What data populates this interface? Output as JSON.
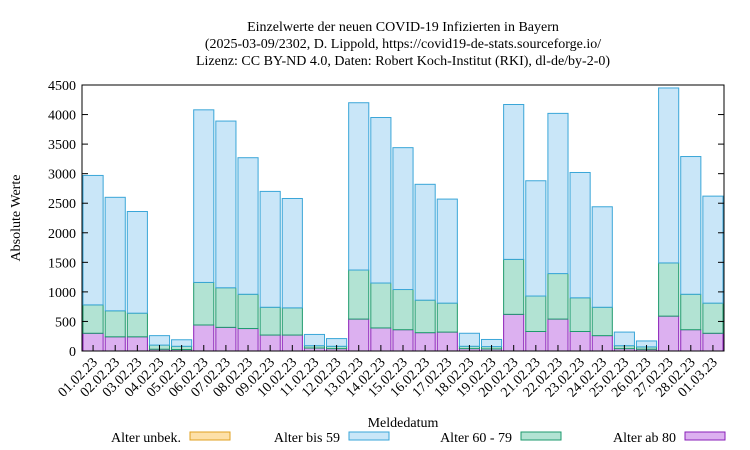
{
  "chart_data": {
    "type": "bar",
    "stacked": true,
    "title": [
      "Einzelwerte der neuen COVID-19 Infizierten in Bayern",
      "(2025-03-09/2302, D. Lippold, https://covid19-de-stats.sourceforge.io/",
      "Lizenz: CC BY-ND 4.0, Daten: Robert Koch-Institut (RKI), dl-de/by-2-0)"
    ],
    "xlabel": "Meldedatum",
    "ylabel": "Absolute Werte",
    "ylim": [
      0,
      4500
    ],
    "yticks": [
      "0",
      "500",
      "1000",
      "1500",
      "2000",
      "2500",
      "3000",
      "3500",
      "4000",
      "4500"
    ],
    "categories": [
      "01.02.23",
      "02.02.23",
      "03.02.23",
      "04.02.23",
      "05.02.23",
      "06.02.23",
      "07.02.23",
      "08.02.23",
      "09.02.23",
      "10.02.23",
      "11.02.23",
      "12.02.23",
      "13.02.23",
      "14.02.23",
      "15.02.23",
      "16.02.23",
      "17.02.23",
      "18.02.23",
      "19.02.23",
      "20.02.23",
      "21.02.23",
      "22.02.23",
      "23.02.23",
      "24.02.23",
      "25.02.23",
      "26.02.23",
      "27.02.23",
      "28.02.23",
      "01.03.23"
    ],
    "legend_position": "bottom",
    "series": [
      {
        "name": "Alter ab 80",
        "color": "#dcb0f0",
        "edge": "#8a1fb8",
        "values": [
          300,
          240,
          240,
          30,
          25,
          440,
          400,
          380,
          270,
          270,
          50,
          40,
          540,
          390,
          360,
          310,
          320,
          40,
          35,
          620,
          330,
          540,
          330,
          260,
          40,
          30,
          590,
          360,
          300
        ]
      },
      {
        "name": "Alter 60 - 79",
        "color": "#b2e3d3",
        "edge": "#1d9a6c",
        "values": [
          480,
          440,
          400,
          70,
          55,
          720,
          670,
          580,
          470,
          460,
          40,
          40,
          830,
          760,
          680,
          550,
          490,
          40,
          40,
          930,
          600,
          770,
          570,
          480,
          50,
          40,
          900,
          600,
          510
        ]
      },
      {
        "name": "Alter bis 59",
        "color": "#c9e6f8",
        "edge": "#3aa6d8",
        "values": [
          2190,
          1920,
          1720,
          160,
          110,
          2920,
          2820,
          2310,
          1960,
          1850,
          190,
          130,
          2830,
          2800,
          2400,
          1960,
          1760,
          220,
          120,
          2620,
          1950,
          2710,
          2120,
          1700,
          230,
          100,
          2960,
          2330,
          1810
        ]
      },
      {
        "name": "Alter unbek.",
        "color": "#fde0a8",
        "edge": "#e0a020",
        "values": [
          0,
          0,
          0,
          0,
          0,
          0,
          0,
          0,
          0,
          0,
          0,
          0,
          0,
          0,
          0,
          0,
          0,
          0,
          0,
          0,
          0,
          0,
          0,
          0,
          0,
          0,
          0,
          0,
          0
        ]
      }
    ]
  }
}
